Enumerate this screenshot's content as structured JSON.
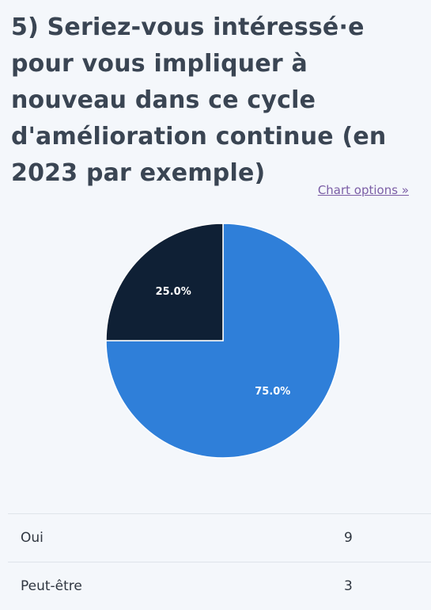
{
  "question": {
    "title": "5) Seriez-vous intéressé·e pour vous impliquer à nouveau dans ce cycle d'amélioration continue (en 2023 par exemple)"
  },
  "chart_options_label": "Chart options »",
  "colors": {
    "oui": "#2f7fd9",
    "peut_etre": "#0f2035"
  },
  "chart_data": {
    "type": "pie",
    "title": "",
    "categories": [
      "Oui",
      "Peut-être"
    ],
    "values": [
      9,
      3
    ],
    "percent_labels": [
      "75.0%",
      "25.0%"
    ]
  },
  "table": {
    "rows": [
      {
        "answer": "Oui",
        "count": "9"
      },
      {
        "answer": "Peut-être",
        "count": "3"
      }
    ]
  }
}
